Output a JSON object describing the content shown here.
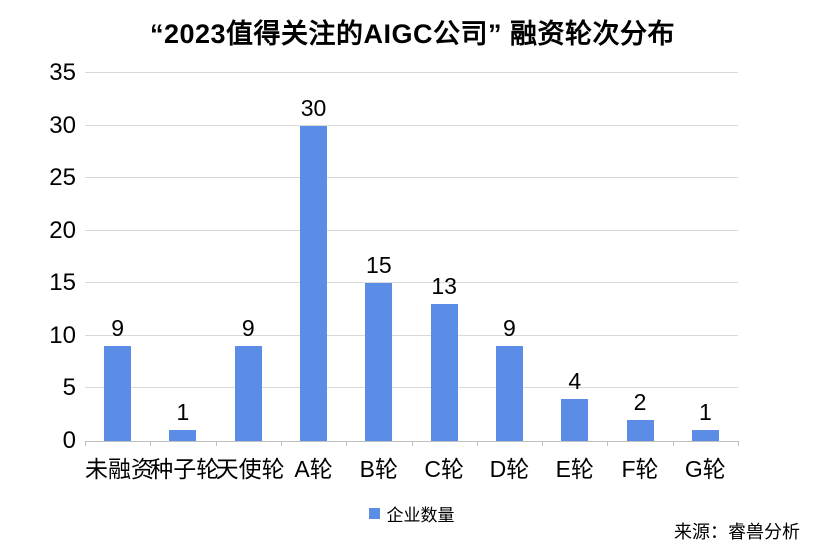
{
  "page": {
    "background": "#ffffff"
  },
  "chart_data": {
    "type": "bar",
    "title": "“2023值得关注的AIGC公司” 融资轮次分布",
    "categories": [
      "未融资",
      "种子轮",
      "天使轮",
      "A轮",
      "B轮",
      "C轮",
      "D轮",
      "E轮",
      "F轮",
      "G轮"
    ],
    "values": [
      9,
      1,
      9,
      30,
      15,
      13,
      9,
      4,
      2,
      1
    ],
    "series_name": "企业数量",
    "xlabel": "",
    "ylabel": "",
    "ylim": [
      0,
      35
    ],
    "ytick_step": 5,
    "grid": "horizontal",
    "legend_position": "bottom",
    "bar_color": "#5B8DE6",
    "gridline_color": "#D9D9D9",
    "axis_color": "#BFBFBF",
    "text_color": "#000000"
  },
  "legend": {
    "label": "企业数量",
    "swatch_color": "#5B8DE6"
  },
  "source": {
    "label": "来源：睿兽分析"
  }
}
